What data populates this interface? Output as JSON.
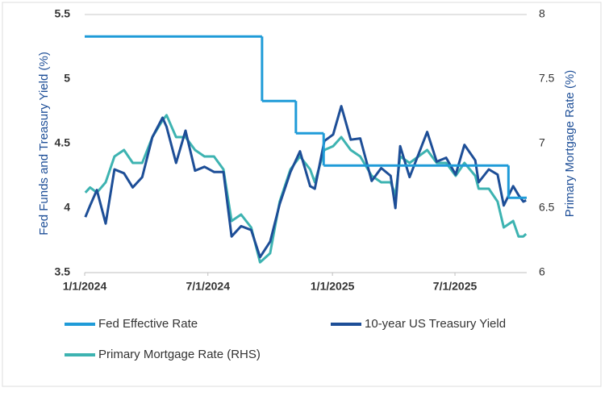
{
  "chart_data": {
    "type": "line",
    "ylabel": "Fed Funds and Treasury Yield (%)",
    "y2label": "Primary Mortgage Rate (%)",
    "xlim": [
      "2024-01-01",
      "2025-10-15"
    ],
    "xticks": [
      {
        "value": "2024-01-01",
        "label": "1/1/2024"
      },
      {
        "value": "2024-07-01",
        "label": "7/1/2024"
      },
      {
        "value": "2025-01-01",
        "label": "1/1/2025"
      },
      {
        "value": "2025-07-01",
        "label": "7/1/2025"
      }
    ],
    "ylim": [
      3.5,
      5.5
    ],
    "yticks": [
      3.5,
      4.0,
      4.5,
      5.0,
      5.5
    ],
    "y2lim": [
      6,
      8
    ],
    "y2ticks": [
      6,
      6.5,
      7,
      7.5,
      8
    ],
    "grid": false,
    "series": [
      {
        "name": "Fed Effective Rate",
        "color": "#1f9bd8",
        "step": true,
        "x": [
          "2024-01-01",
          "2024-09-19",
          "2024-11-08",
          "2024-12-19",
          "2025-09-18"
        ],
        "values": [
          5.33,
          4.83,
          4.58,
          4.33,
          4.08
        ]
      },
      {
        "name": "10-year US Treasury Yield",
        "color": "#1d4e97",
        "x": [
          "2024-01-02",
          "2024-01-09",
          "2024-01-19",
          "2024-02-01",
          "2024-02-14",
          "2024-02-28",
          "2024-03-12",
          "2024-03-26",
          "2024-04-10",
          "2024-04-25",
          "2024-05-01",
          "2024-05-15",
          "2024-05-29",
          "2024-06-12",
          "2024-06-26",
          "2024-07-10",
          "2024-07-24",
          "2024-08-05",
          "2024-08-19",
          "2024-09-03",
          "2024-09-16",
          "2024-10-01",
          "2024-10-15",
          "2024-10-31",
          "2024-11-14",
          "2024-11-29",
          "2024-12-06",
          "2024-12-20",
          "2025-01-02",
          "2025-01-14",
          "2025-01-28",
          "2025-02-11",
          "2025-02-28",
          "2025-03-14",
          "2025-03-28",
          "2025-04-04",
          "2025-04-11",
          "2025-04-25",
          "2025-05-21",
          "2025-06-04",
          "2025-06-18",
          "2025-07-02",
          "2025-07-15",
          "2025-07-31",
          "2025-08-05",
          "2025-08-20",
          "2025-09-02",
          "2025-09-11",
          "2025-09-25",
          "2025-10-03",
          "2025-10-10",
          "2025-10-14"
        ],
        "values": [
          3.93,
          4.02,
          4.14,
          3.88,
          4.3,
          4.27,
          4.16,
          4.24,
          4.55,
          4.7,
          4.63,
          4.35,
          4.6,
          4.29,
          4.32,
          4.28,
          4.28,
          3.78,
          3.86,
          3.83,
          3.62,
          3.74,
          4.03,
          4.28,
          4.44,
          4.17,
          4.15,
          4.52,
          4.57,
          4.79,
          4.53,
          4.54,
          4.21,
          4.31,
          4.25,
          4.0,
          4.48,
          4.24,
          4.59,
          4.36,
          4.39,
          4.26,
          4.49,
          4.37,
          4.2,
          4.3,
          4.26,
          4.02,
          4.17,
          4.1,
          4.05,
          4.06
        ]
      },
      {
        "name": "Primary Mortgage Rate (RHS)",
        "color": "#3db3b1",
        "axis": "y2",
        "x": [
          "2024-01-02",
          "2024-01-09",
          "2024-01-19",
          "2024-02-01",
          "2024-02-14",
          "2024-02-28",
          "2024-03-12",
          "2024-03-26",
          "2024-04-10",
          "2024-04-25",
          "2024-05-01",
          "2024-05-15",
          "2024-05-29",
          "2024-06-12",
          "2024-06-26",
          "2024-07-10",
          "2024-07-24",
          "2024-08-05",
          "2024-08-19",
          "2024-09-03",
          "2024-09-16",
          "2024-10-01",
          "2024-10-15",
          "2024-10-31",
          "2024-11-14",
          "2024-11-29",
          "2024-12-06",
          "2024-12-20",
          "2025-01-02",
          "2025-01-14",
          "2025-01-28",
          "2025-02-11",
          "2025-02-28",
          "2025-03-14",
          "2025-03-28",
          "2025-04-04",
          "2025-04-11",
          "2025-04-25",
          "2025-05-21",
          "2025-06-04",
          "2025-06-18",
          "2025-07-02",
          "2025-07-15",
          "2025-07-31",
          "2025-08-05",
          "2025-08-20",
          "2025-09-02",
          "2025-09-11",
          "2025-09-25",
          "2025-10-03",
          "2025-10-10",
          "2025-10-14"
        ],
        "values": [
          6.62,
          6.66,
          6.62,
          6.7,
          6.9,
          6.95,
          6.85,
          6.85,
          7.05,
          7.18,
          7.22,
          7.05,
          7.05,
          6.95,
          6.9,
          6.9,
          6.8,
          6.4,
          6.45,
          6.35,
          6.08,
          6.15,
          6.55,
          6.8,
          6.9,
          6.8,
          6.7,
          6.95,
          6.98,
          7.05,
          6.95,
          6.9,
          6.75,
          6.7,
          6.7,
          6.6,
          6.9,
          6.85,
          6.95,
          6.85,
          6.85,
          6.75,
          6.85,
          6.75,
          6.65,
          6.65,
          6.55,
          6.35,
          6.4,
          6.28,
          6.28,
          6.3
        ]
      }
    ]
  }
}
